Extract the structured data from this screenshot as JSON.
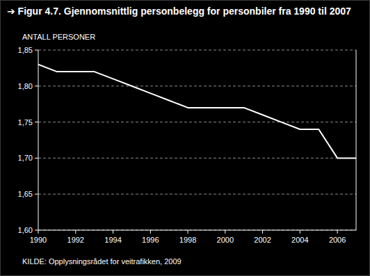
{
  "chart_data": {
    "type": "line",
    "title": "➔ Figur 4.7. Gjennomsnittlig personbelegg for personbiler fra 1990 til 2007",
    "y_label": "ANTALL PERSONER",
    "source": "KILDE: Opplysningsrådet for veitrafikken, 2009",
    "x": [
      1990,
      1991,
      1992,
      1993,
      1994,
      1995,
      1996,
      1997,
      1998,
      1999,
      2000,
      2001,
      2002,
      2003,
      2004,
      2005,
      2006,
      2007
    ],
    "values": [
      1.83,
      1.82,
      1.82,
      1.82,
      1.81,
      1.8,
      1.79,
      1.78,
      1.77,
      1.77,
      1.77,
      1.77,
      1.76,
      1.75,
      1.74,
      1.74,
      1.7,
      1.7
    ],
    "color": "#ffffff",
    "xlim": [
      1990,
      2007
    ],
    "xticks": [
      1990,
      1992,
      1994,
      1996,
      1998,
      2000,
      2002,
      2004,
      2006
    ],
    "ylim": [
      1.6,
      1.85
    ],
    "yticks": [
      {
        "value": 1.6,
        "label": "1,60"
      },
      {
        "value": 1.65,
        "label": "1,65"
      },
      {
        "value": 1.7,
        "label": "1,70"
      },
      {
        "value": 1.75,
        "label": "1,75"
      },
      {
        "value": 1.8,
        "label": "1,80"
      },
      {
        "value": 1.85,
        "label": "1,85"
      }
    ],
    "grid": true
  }
}
